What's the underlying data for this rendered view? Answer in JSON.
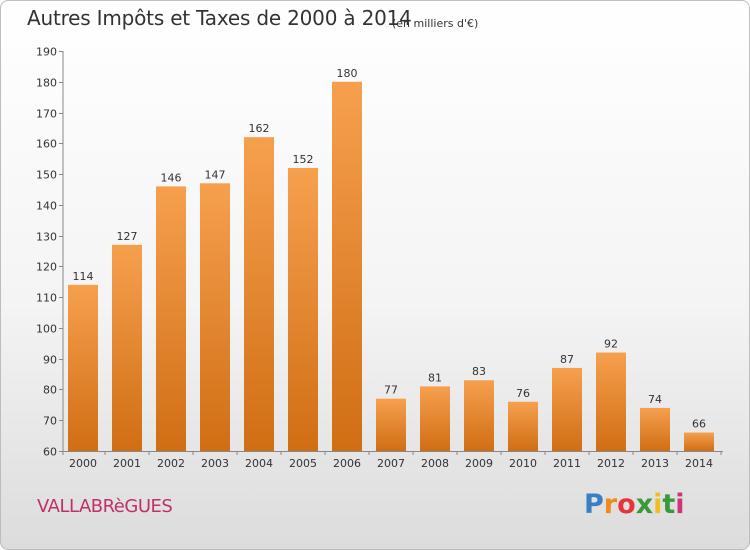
{
  "header": {
    "title": "Autres Impôts et Taxes de 2000 à 2014",
    "subtitle": "(en milliers d'€)"
  },
  "footer": {
    "commune": "VALLABRèGUES",
    "logo_letters": [
      "P",
      "r",
      "o",
      "x",
      "i",
      "t",
      "i"
    ],
    "logo_colors": [
      "#3a7fc4",
      "#f08a1c",
      "#e6343a",
      "#3a9a3a",
      "#f0c020",
      "#3a9a3a",
      "#d0357a"
    ]
  },
  "chart_data": {
    "type": "bar",
    "categories": [
      "2000",
      "2001",
      "2002",
      "2003",
      "2004",
      "2005",
      "2006",
      "2007",
      "2008",
      "2009",
      "2010",
      "2011",
      "2012",
      "2013",
      "2014"
    ],
    "values": [
      114,
      127,
      146,
      147,
      162,
      152,
      180,
      77,
      81,
      83,
      76,
      87,
      92,
      74,
      66
    ],
    "ylim": [
      60,
      190
    ],
    "yticks": [
      60,
      70,
      80,
      90,
      100,
      110,
      120,
      130,
      140,
      150,
      160,
      170,
      180,
      190
    ],
    "grid": false,
    "colors": {
      "bar_light": "#f6a04e",
      "bar_dark": "#d06e14",
      "axis": "#888888"
    }
  }
}
